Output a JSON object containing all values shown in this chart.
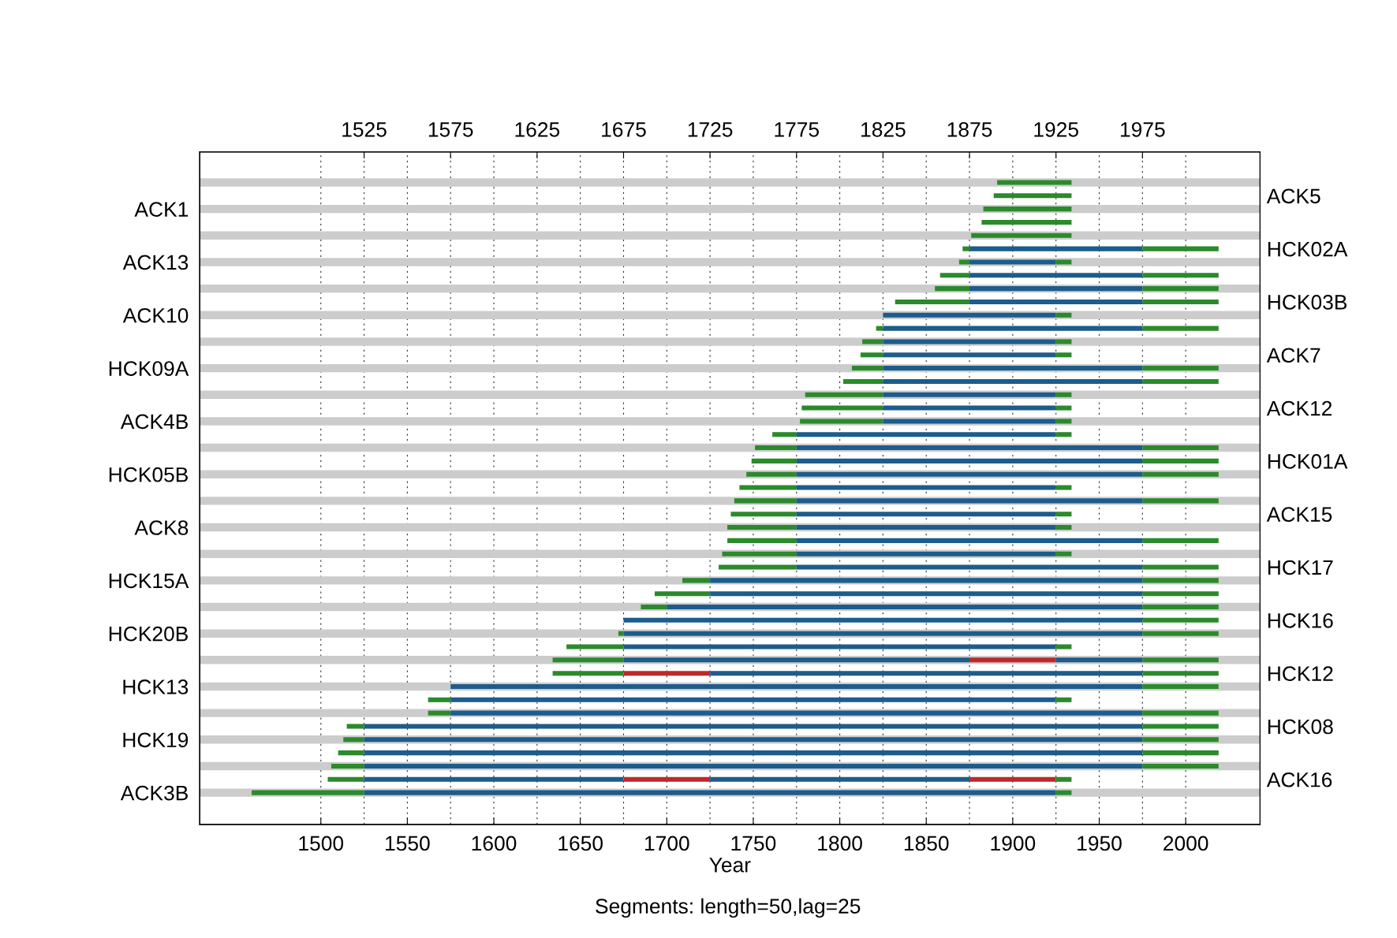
{
  "chart_data": {
    "type": "bar",
    "orientation": "horizontal",
    "xlabel": "Year",
    "annotations": [
      "Segments: length=50,lag=25"
    ],
    "categories": [
      null,
      null,
      "ACK1",
      null,
      null,
      null,
      "ACK13",
      null,
      null,
      null,
      "ACK10",
      null,
      null,
      null,
      "HCK09A",
      null,
      null,
      null,
      "ACK4B",
      null,
      null,
      null,
      "HCK05B",
      null,
      null,
      null,
      "ACK8",
      null,
      null,
      null,
      "HCK15A",
      null,
      null,
      null,
      "HCK20B",
      null,
      null,
      null,
      "HCK13",
      null,
      null,
      null,
      "HCK19",
      null,
      null,
      null,
      "ACK3B"
    ],
    "y2_categories": [
      null,
      "ACK5",
      null,
      null,
      null,
      "HCK02A",
      null,
      null,
      null,
      "HCK03B",
      null,
      null,
      null,
      "ACK7",
      null,
      null,
      null,
      "ACK12",
      null,
      null,
      null,
      "HCK01A",
      null,
      null,
      null,
      "ACK15",
      null,
      null,
      null,
      "HCK17",
      null,
      null,
      null,
      "HCK16",
      null,
      null,
      null,
      "HCK12",
      null,
      null,
      null,
      "HCK08",
      null,
      null,
      null,
      "ACK16",
      null
    ],
    "xlim": [
      1430,
      2043
    ],
    "xticks": [
      1500,
      1550,
      1600,
      1650,
      1700,
      1750,
      1800,
      1850,
      1900,
      1950,
      2000
    ],
    "x2lim": [
      1430,
      2043
    ],
    "x2ticks": [
      1525,
      1575,
      1625,
      1675,
      1725,
      1775,
      1825,
      1875,
      1925,
      1975
    ],
    "grid": "x",
    "series": [
      {
        "color": "#cccccc",
        "base": [
          1430,
          null,
          1430,
          null,
          1430,
          null,
          1430,
          null,
          1430,
          null,
          1430,
          null,
          1430,
          null,
          1430,
          null,
          1430,
          null,
          1430,
          null,
          1430,
          null,
          1430,
          null,
          1430,
          null,
          1430,
          null,
          1430,
          null,
          1430,
          null,
          1430,
          null,
          1430,
          null,
          1430,
          null,
          1430,
          null,
          1430,
          null,
          1430,
          null,
          1430,
          null,
          1430
        ],
        "values": [
          613,
          null,
          613,
          null,
          613,
          null,
          613,
          null,
          613,
          null,
          613,
          null,
          613,
          null,
          613,
          null,
          613,
          null,
          613,
          null,
          613,
          null,
          613,
          null,
          613,
          null,
          613,
          null,
          613,
          null,
          613,
          null,
          613,
          null,
          613,
          null,
          613,
          null,
          613,
          null,
          613,
          null,
          613,
          null,
          613,
          null,
          613
        ]
      },
      {
        "color": "#2b8a2b",
        "base": [
          1891,
          1889,
          1883,
          1882,
          1876,
          1871,
          1869,
          1858,
          1855,
          1832,
          null,
          1821,
          1813,
          1812,
          1807,
          1802,
          1780,
          1778,
          1777,
          1761,
          1751,
          1749,
          1746,
          1742,
          1739,
          1737,
          1735,
          1735,
          1732,
          1730,
          1709,
          1693,
          1685,
          null,
          1672,
          1642,
          1634,
          1634,
          null,
          1562,
          1562,
          1515,
          1513,
          1510,
          1506,
          1504,
          1460
        ],
        "values": [
          43,
          45,
          51,
          52,
          58,
          4,
          6,
          17,
          20,
          43,
          null,
          4,
          12,
          13,
          18,
          23,
          45,
          47,
          48,
          14,
          24,
          26,
          29,
          33,
          36,
          38,
          40,
          40,
          43,
          45,
          16,
          32,
          15,
          null,
          3,
          33,
          41,
          41,
          null,
          13,
          13,
          10,
          12,
          15,
          19,
          21,
          65
        ]
      },
      {
        "color": "#1d5c8c",
        "base": [
          null,
          null,
          null,
          null,
          null,
          1875,
          1875,
          1875,
          1875,
          1875,
          1825,
          1825,
          1825,
          1825,
          1825,
          1825,
          1825,
          1825,
          1825,
          1775,
          1775,
          1775,
          1775,
          1775,
          1775,
          1775,
          1775,
          1775,
          1775,
          1775,
          1725,
          1725,
          1700,
          1675,
          1675,
          1675,
          1675,
          null,
          1575,
          1575,
          1575,
          1525,
          1525,
          1525,
          1525,
          1525,
          1525
        ],
        "values": [
          null,
          null,
          null,
          null,
          null,
          100,
          50,
          100,
          100,
          100,
          100,
          150,
          100,
          100,
          150,
          150,
          100,
          100,
          100,
          150,
          200,
          200,
          200,
          150,
          200,
          150,
          150,
          200,
          150,
          200,
          250,
          250,
          275,
          300,
          300,
          250,
          200,
          null,
          400,
          350,
          400,
          450,
          450,
          450,
          450,
          150,
          400
        ]
      },
      {
        "color": "#c0282a",
        "base": [
          null,
          null,
          null,
          null,
          null,
          null,
          null,
          null,
          null,
          null,
          null,
          null,
          null,
          null,
          null,
          null,
          null,
          null,
          null,
          null,
          null,
          null,
          null,
          null,
          null,
          null,
          null,
          null,
          null,
          null,
          null,
          null,
          null,
          null,
          null,
          null,
          1875,
          1675,
          null,
          null,
          null,
          null,
          null,
          null,
          null,
          1675,
          null
        ],
        "values": [
          null,
          null,
          null,
          null,
          null,
          null,
          null,
          null,
          null,
          null,
          null,
          null,
          null,
          null,
          null,
          null,
          null,
          null,
          null,
          null,
          null,
          null,
          null,
          null,
          null,
          null,
          null,
          null,
          null,
          null,
          null,
          null,
          null,
          null,
          null,
          null,
          50,
          50,
          null,
          null,
          null,
          null,
          null,
          null,
          null,
          50,
          null
        ]
      },
      {
        "color": "#1d5c8c",
        "base": [
          null,
          null,
          null,
          null,
          null,
          null,
          null,
          null,
          null,
          null,
          null,
          null,
          null,
          null,
          null,
          null,
          null,
          null,
          null,
          null,
          null,
          null,
          null,
          null,
          null,
          null,
          null,
          null,
          null,
          null,
          null,
          null,
          null,
          null,
          null,
          null,
          1925,
          1725,
          null,
          null,
          null,
          null,
          null,
          null,
          null,
          1725,
          null
        ],
        "values": [
          null,
          null,
          null,
          null,
          null,
          null,
          null,
          null,
          null,
          null,
          null,
          null,
          null,
          null,
          null,
          null,
          null,
          null,
          null,
          null,
          null,
          null,
          null,
          null,
          null,
          null,
          null,
          null,
          null,
          null,
          null,
          null,
          null,
          null,
          null,
          null,
          50,
          250,
          null,
          null,
          null,
          null,
          null,
          null,
          null,
          150,
          null
        ]
      },
      {
        "color": "#c0282a",
        "base": [
          null,
          null,
          null,
          null,
          null,
          null,
          null,
          null,
          null,
          null,
          null,
          null,
          null,
          null,
          null,
          null,
          null,
          null,
          null,
          null,
          null,
          null,
          null,
          null,
          null,
          null,
          null,
          null,
          null,
          null,
          null,
          null,
          null,
          null,
          null,
          null,
          null,
          null,
          null,
          null,
          null,
          null,
          null,
          null,
          null,
          1875,
          null
        ],
        "values": [
          null,
          null,
          null,
          null,
          null,
          null,
          null,
          null,
          null,
          null,
          null,
          null,
          null,
          null,
          null,
          null,
          null,
          null,
          null,
          null,
          null,
          null,
          null,
          null,
          null,
          null,
          null,
          null,
          null,
          null,
          null,
          null,
          null,
          null,
          null,
          null,
          null,
          null,
          null,
          null,
          null,
          null,
          null,
          null,
          null,
          50,
          null
        ]
      },
      {
        "color": "#2b8a2b",
        "base": [
          null,
          null,
          null,
          null,
          null,
          1975,
          1925,
          1975,
          1975,
          1975,
          1925,
          1975,
          1925,
          1925,
          1975,
          1975,
          1925,
          1925,
          1925,
          1925,
          1975,
          1975,
          1975,
          1925,
          1975,
          1925,
          1925,
          1975,
          1925,
          1975,
          1975,
          1975,
          1975,
          1975,
          1975,
          1925,
          1975,
          1975,
          1975,
          1925,
          1975,
          1975,
          1975,
          1975,
          1975,
          1925,
          1925
        ],
        "values": [
          null,
          null,
          null,
          null,
          null,
          44,
          9,
          44,
          44,
          44,
          9,
          44,
          9,
          9,
          44,
          44,
          9,
          9,
          9,
          9,
          44,
          44,
          44,
          9,
          44,
          9,
          9,
          44,
          9,
          44,
          44,
          44,
          44,
          44,
          44,
          9,
          44,
          44,
          44,
          9,
          44,
          44,
          44,
          44,
          44,
          9,
          9
        ]
      }
    ]
  }
}
